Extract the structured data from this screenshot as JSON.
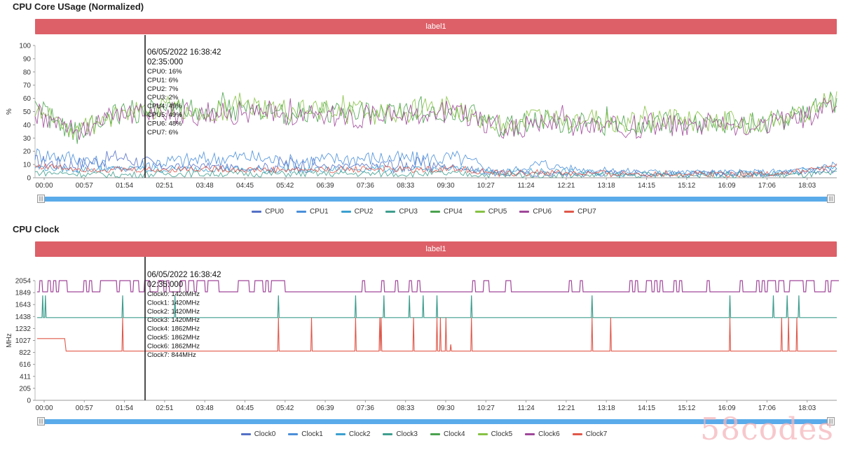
{
  "colors": {
    "banner": "#dd6068",
    "slider": "#5aabea",
    "cursor": "#222222"
  },
  "usage_chart": {
    "title": "CPU Core USage (Normalized)",
    "banner_label": "label1",
    "y_axis_label": "%",
    "y_ticks": [
      "100",
      "90",
      "80",
      "70",
      "60",
      "50",
      "40",
      "30",
      "20",
      "10",
      "0"
    ],
    "x_ticks": [
      "00:00",
      "00:57",
      "01:54",
      "02:51",
      "03:48",
      "04:45",
      "05:42",
      "06:39",
      "07:36",
      "08:33",
      "09:30",
      "10:27",
      "11:24",
      "12:21",
      "13:18",
      "14:15",
      "15:12",
      "16:09",
      "17:06",
      "18:03"
    ],
    "tooltip": {
      "date": "06/05/2022 16:38:42",
      "time": "02:35:000",
      "lines": [
        "CPU0: 16%",
        "CPU1: 6%",
        "CPU2: 7%",
        "CPU3: 2%",
        "CPU4: 49%",
        "CPU5: 49%",
        "CPU6: 48%",
        "CPU7: 6%"
      ]
    },
    "legend": [
      {
        "name": "CPU0",
        "color": "#5470c6"
      },
      {
        "name": "CPU1",
        "color": "#4a8fd9"
      },
      {
        "name": "CPU2",
        "color": "#3ba0d0"
      },
      {
        "name": "CPU3",
        "color": "#3f9e8e"
      },
      {
        "name": "CPU4",
        "color": "#4aa24e"
      },
      {
        "name": "CPU5",
        "color": "#86c244"
      },
      {
        "name": "CPU6",
        "color": "#a0479a"
      },
      {
        "name": "CPU7",
        "color": "#e0584a"
      }
    ]
  },
  "clock_chart": {
    "title": "CPU Clock",
    "banner_label": "label1",
    "y_axis_label": "MHz",
    "y_ticks": [
      "2054",
      "1849",
      "1643",
      "1438",
      "1232",
      "1027",
      "822",
      "616",
      "411",
      "205",
      "0"
    ],
    "x_ticks": [
      "00:00",
      "00:57",
      "01:54",
      "02:51",
      "03:48",
      "04:45",
      "05:42",
      "06:39",
      "07:36",
      "08:33",
      "09:30",
      "10:27",
      "11:24",
      "12:21",
      "13:18",
      "14:15",
      "15:12",
      "16:09",
      "17:06",
      "18:03"
    ],
    "tooltip": {
      "date": "06/05/2022 16:38:42",
      "time": "02:35:000",
      "lines": [
        "Clock0: 1420MHz",
        "Clock1: 1420MHz",
        "Clock2: 1420MHz",
        "Clock3: 1420MHz",
        "Clock4: 1862MHz",
        "Clock5: 1862MHz",
        "Clock6: 1862MHz",
        "Clock7: 844MHz"
      ]
    },
    "legend": [
      {
        "name": "Clock0",
        "color": "#5470c6"
      },
      {
        "name": "Clock1",
        "color": "#4a8fd9"
      },
      {
        "name": "Clock2",
        "color": "#3ba0d0"
      },
      {
        "name": "Clock3",
        "color": "#3f9e8e"
      },
      {
        "name": "Clock4",
        "color": "#4aa24e"
      },
      {
        "name": "Clock5",
        "color": "#86c244"
      },
      {
        "name": "Clock6",
        "color": "#a0479a"
      },
      {
        "name": "Clock7",
        "color": "#e0584a"
      }
    ]
  },
  "watermark": "58codes",
  "chart_data": [
    {
      "type": "line",
      "title": "CPU Core USage (Normalized)",
      "xlabel": "",
      "ylabel": "%",
      "ylim": [
        0,
        100
      ],
      "xlim": [
        0,
        1160
      ],
      "grid": false,
      "legend_position": "bottom",
      "cursor_x": 155,
      "series": [
        {
          "name": "CPU0",
          "profile": "low",
          "values": [
            12,
            10,
            16,
            8,
            9,
            7,
            11,
            8,
            9,
            10,
            8,
            3,
            3,
            3,
            4,
            3,
            3,
            3,
            4,
            6
          ]
        },
        {
          "name": "CPU1",
          "profile": "low",
          "values": [
            18,
            15,
            6,
            12,
            14,
            16,
            12,
            14,
            15,
            14,
            15,
            4,
            10,
            6,
            5,
            4,
            4,
            4,
            5,
            10
          ]
        },
        {
          "name": "CPU2",
          "profile": "low",
          "values": [
            8,
            6,
            7,
            6,
            7,
            6,
            6,
            6,
            7,
            6,
            7,
            4,
            5,
            4,
            3,
            3,
            3,
            3,
            4,
            8
          ]
        },
        {
          "name": "CPU3",
          "profile": "low",
          "values": [
            4,
            3,
            2,
            3,
            3,
            3,
            3,
            3,
            3,
            3,
            3,
            2,
            2,
            2,
            2,
            2,
            2,
            2,
            2,
            3
          ]
        },
        {
          "name": "CPU4",
          "profile": "high",
          "values": [
            52,
            34,
            49,
            52,
            50,
            52,
            49,
            49,
            48,
            50,
            52,
            38,
            44,
            41,
            40,
            42,
            43,
            41,
            45,
            58
          ]
        },
        {
          "name": "CPU5",
          "profile": "high",
          "values": [
            54,
            36,
            49,
            53,
            51,
            53,
            50,
            50,
            49,
            51,
            53,
            40,
            46,
            43,
            42,
            44,
            44,
            42,
            47,
            59
          ]
        },
        {
          "name": "CPU6",
          "profile": "high",
          "values": [
            50,
            32,
            48,
            50,
            48,
            50,
            47,
            47,
            46,
            48,
            50,
            36,
            42,
            39,
            38,
            40,
            41,
            39,
            43,
            56
          ]
        },
        {
          "name": "CPU7",
          "profile": "low",
          "values": [
            9,
            7,
            6,
            6,
            7,
            6,
            6,
            6,
            7,
            6,
            7,
            3,
            4,
            3,
            3,
            3,
            3,
            3,
            4,
            9
          ]
        }
      ]
    },
    {
      "type": "line",
      "title": "CPU Clock",
      "xlabel": "",
      "ylabel": "MHz",
      "ylim": [
        0,
        2054
      ],
      "xlim": [
        0,
        1160
      ],
      "grid": false,
      "legend_position": "bottom",
      "cursor_x": 155,
      "series": [
        {
          "name": "Clock0",
          "base": 1420,
          "peak": 1862
        },
        {
          "name": "Clock1",
          "base": 1420,
          "peak": 1862
        },
        {
          "name": "Clock2",
          "base": 1420,
          "peak": 1862
        },
        {
          "name": "Clock3",
          "base": 1420,
          "peak": 1862
        },
        {
          "name": "Clock4",
          "base": 1862,
          "peak": 2054
        },
        {
          "name": "Clock5",
          "base": 1862,
          "peak": 2054
        },
        {
          "name": "Clock6",
          "base": 1862,
          "peak": 2054
        },
        {
          "name": "Clock7",
          "base": 844,
          "start": 1060,
          "peak": 1862,
          "spike_x": [
            124,
            350,
            398,
            462,
            497,
            499,
            546,
            580,
            585,
            593,
            600,
            630,
            805,
            832,
            1005,
            1080,
            1090,
            1102
          ]
        }
      ],
      "teal_spike_x": [
        8,
        12,
        124,
        200,
        350,
        462,
        503,
        540,
        560,
        580,
        630,
        805,
        1005,
        1068,
        1088,
        1105
      ]
    }
  ]
}
